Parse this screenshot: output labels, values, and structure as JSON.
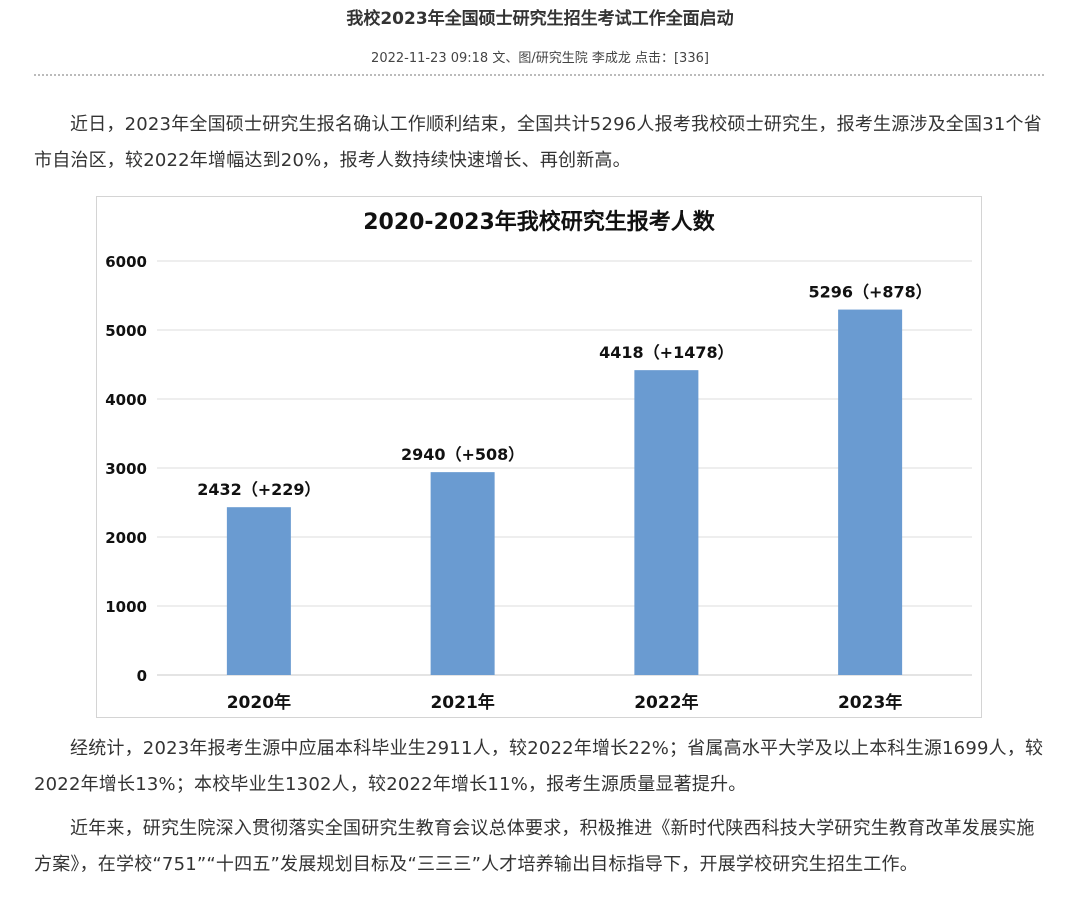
{
  "article": {
    "title": "我校2023年全国硕士研究生招生考试工作全面启动",
    "meta": "2022-11-23 09:18 文、图/研究生院 李成龙 点击：[336]",
    "paragraphs": [
      "近日，2023年全国硕士研究生报名确认工作顺利结束，全国共计5296人报考我校硕士研究生，报考生源涉及全国31个省市自治区，较2022年增幅达到20%，报考人数持续快速增长、再创新高。",
      "经统计，2023年报考生源中应届本科毕业生2911人，较2022年增长22%；省属高水平大学及以上本科生源1699人，较2022年增长13%；本校毕业生1302人，较2022年增长11%，报考生源质量显著提升。",
      "近年来，研究生院深入贯彻落实全国研究生教育会议总体要求，积极推进《新时代陕西科技大学研究生教育改革发展实施方案》，在学校“751”“十四五”发展规划目标及“三三三”人才培养输出目标指导下，开展学校研究生招生工作。"
    ]
  },
  "chart_data": {
    "type": "bar",
    "title": "2020-2023年我校研究生报考人数",
    "categories": [
      "2020年",
      "2021年",
      "2022年",
      "2023年"
    ],
    "values": [
      2432,
      2940,
      4418,
      5296
    ],
    "data_labels": [
      "2432（+229）",
      "2940（+508）",
      "4418（+1478）",
      "5296（+878）"
    ],
    "yticks": [
      0,
      1000,
      2000,
      3000,
      4000,
      5000,
      6000
    ],
    "ylim": [
      0,
      6000
    ],
    "grid": true,
    "legend": "none",
    "bar_color": "#6a9bd1",
    "xlabel": "",
    "ylabel": ""
  }
}
